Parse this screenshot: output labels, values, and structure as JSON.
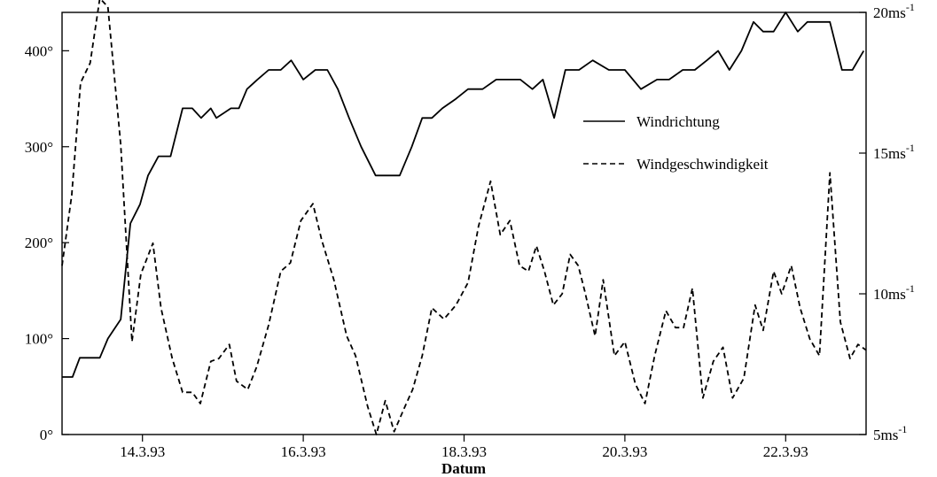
{
  "chart_data": {
    "type": "line",
    "title": "",
    "xlabel": "Datum",
    "x_tick_labels": [
      "14.3.93",
      "16.3.93",
      "18.3.93",
      "20.3.93",
      "22.3.93"
    ],
    "x_tick_positions": [
      14,
      16,
      18,
      20,
      22
    ],
    "xlim": [
      13.0,
      23.0
    ],
    "y_left": {
      "ylim": [
        0,
        440
      ],
      "ticks": [
        0,
        100,
        200,
        300,
        400
      ],
      "tick_labels": [
        "0°",
        "100°",
        "200°",
        "300°",
        "400°"
      ]
    },
    "y_right": {
      "ylim": [
        5,
        20
      ],
      "ticks": [
        5,
        10,
        15,
        20
      ],
      "tick_labels": [
        "5ms",
        "10ms",
        "15ms",
        "20ms"
      ],
      "unit_superscript": "-1"
    },
    "legend": {
      "placement": "upper-right"
    },
    "grid": false,
    "series": [
      {
        "name": "Windrichtung",
        "axis": "left",
        "style": "solid",
        "x": [
          13.0,
          13.13,
          13.22,
          13.34,
          13.47,
          13.57,
          13.73,
          13.85,
          13.97,
          14.07,
          14.2,
          14.35,
          14.5,
          14.62,
          14.73,
          14.85,
          14.92,
          15.1,
          15.2,
          15.3,
          15.43,
          15.57,
          15.72,
          15.85,
          16.0,
          16.15,
          16.3,
          16.43,
          16.57,
          16.72,
          16.9,
          17.03,
          17.2,
          17.35,
          17.48,
          17.6,
          17.73,
          17.9,
          18.05,
          18.23,
          18.4,
          18.55,
          18.7,
          18.85,
          18.98,
          19.12,
          19.26,
          19.43,
          19.6,
          19.8,
          20.0,
          20.2,
          20.4,
          20.55,
          20.72,
          20.87,
          21.02,
          21.16,
          21.3,
          21.45,
          21.6,
          21.72,
          21.85,
          22.0,
          22.15,
          22.27,
          22.4,
          22.55,
          22.7,
          22.83,
          22.97
        ],
        "values": [
          60,
          60,
          80,
          80,
          80,
          100,
          120,
          220,
          240,
          270,
          290,
          290,
          340,
          340,
          330,
          340,
          330,
          340,
          340,
          360,
          370,
          380,
          380,
          390,
          370,
          380,
          380,
          360,
          330,
          300,
          270,
          270,
          270,
          300,
          330,
          330,
          340,
          350,
          360,
          360,
          370,
          370,
          370,
          360,
          370,
          330,
          380,
          380,
          390,
          380,
          380,
          360,
          370,
          370,
          380,
          380,
          390,
          400,
          380,
          400,
          430,
          420,
          420,
          440,
          420,
          430,
          430,
          430,
          380,
          380,
          400
        ],
        "color": "#000000"
      },
      {
        "name": "Windgeschwindigkeit",
        "axis": "right",
        "style": "dashed",
        "x": [
          13.0,
          13.12,
          13.23,
          13.35,
          13.47,
          13.57,
          13.73,
          13.87,
          13.98,
          14.13,
          14.23,
          14.37,
          14.5,
          14.62,
          14.72,
          14.85,
          14.95,
          15.08,
          15.17,
          15.31,
          15.42,
          15.57,
          15.72,
          15.84,
          15.97,
          16.12,
          16.23,
          16.38,
          16.54,
          16.65,
          16.8,
          16.91,
          17.02,
          17.13,
          17.25,
          17.36,
          17.48,
          17.6,
          17.75,
          17.9,
          18.05,
          18.18,
          18.33,
          18.45,
          18.57,
          18.69,
          18.8,
          18.9,
          19.0,
          19.11,
          19.22,
          19.32,
          19.42,
          19.5,
          19.63,
          19.73,
          19.87,
          20.0,
          20.13,
          20.25,
          20.37,
          20.51,
          20.63,
          20.73,
          20.84,
          20.97,
          21.1,
          21.22,
          21.34,
          21.48,
          21.62,
          21.72,
          21.85,
          21.95,
          22.07,
          22.18,
          22.3,
          22.42,
          22.55,
          22.68,
          22.8,
          22.9,
          23.0
        ],
        "values": [
          11.0,
          13.5,
          17.5,
          18.2,
          20.5,
          20.2,
          15.3,
          8.3,
          10.7,
          11.8,
          9.5,
          7.7,
          6.5,
          6.5,
          6.1,
          7.6,
          7.7,
          8.2,
          6.9,
          6.6,
          7.4,
          8.9,
          10.8,
          11.1,
          12.6,
          13.2,
          11.9,
          10.5,
          8.5,
          7.8,
          6.0,
          5.0,
          6.2,
          5.1,
          5.9,
          6.6,
          7.8,
          9.5,
          9.1,
          9.6,
          10.4,
          12.4,
          14.0,
          12.1,
          12.6,
          11.0,
          10.8,
          11.7,
          10.8,
          9.6,
          10.0,
          11.4,
          11.0,
          10.1,
          8.5,
          10.5,
          7.8,
          8.3,
          6.8,
          6.1,
          7.8,
          9.4,
          8.8,
          8.8,
          10.2,
          6.3,
          7.6,
          8.1,
          6.3,
          7.0,
          9.6,
          8.7,
          10.8,
          10.0,
          11.0,
          9.5,
          8.4,
          7.8,
          14.3,
          9.0,
          7.7,
          8.2,
          8.0
        ],
        "color": "#000000"
      }
    ]
  }
}
